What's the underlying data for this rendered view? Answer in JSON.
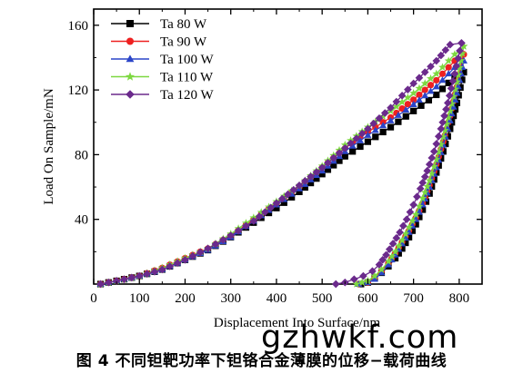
{
  "caption": "图 4   不同钽靶功率下钽铬合金薄膜的位移−载荷曲线",
  "watermark": "gzhwkf.com",
  "chart_data": {
    "type": "line",
    "xlabel": "Displacement Into Surface/nm",
    "ylabel": "Load On Sample/mN",
    "xlim": [
      0,
      850
    ],
    "ylim": [
      0,
      170
    ],
    "xticks": [
      0,
      100,
      200,
      300,
      400,
      500,
      600,
      700,
      800
    ],
    "yticks": [
      40,
      80,
      120,
      160
    ],
    "legend_position": "top-left",
    "series": [
      {
        "name": "Ta 80 W",
        "color": "#000000",
        "marker": "square",
        "loading": [
          [
            15,
            0
          ],
          [
            50,
            2
          ],
          [
            100,
            5
          ],
          [
            150,
            9
          ],
          [
            200,
            15
          ],
          [
            250,
            21
          ],
          [
            300,
            29
          ],
          [
            350,
            38
          ],
          [
            400,
            47
          ],
          [
            450,
            57
          ],
          [
            500,
            68
          ],
          [
            550,
            79
          ],
          [
            600,
            88
          ],
          [
            650,
            97
          ],
          [
            700,
            107
          ],
          [
            750,
            117
          ],
          [
            790,
            128
          ],
          [
            810,
            131
          ]
        ],
        "unloading": [
          [
            810,
            131
          ],
          [
            795,
            112
          ],
          [
            780,
            96
          ],
          [
            765,
            82
          ],
          [
            750,
            69
          ],
          [
            735,
            56
          ],
          [
            720,
            46
          ],
          [
            705,
            37
          ],
          [
            690,
            29
          ],
          [
            675,
            22
          ],
          [
            660,
            16
          ],
          [
            645,
            11
          ],
          [
            630,
            7
          ],
          [
            615,
            4
          ],
          [
            600,
            1
          ],
          [
            585,
            0
          ]
        ]
      },
      {
        "name": "Ta 90 W",
        "color": "#ee2020",
        "marker": "circle",
        "loading": [
          [
            15,
            0
          ],
          [
            50,
            2
          ],
          [
            100,
            5
          ],
          [
            150,
            10
          ],
          [
            200,
            16
          ],
          [
            250,
            22
          ],
          [
            300,
            30
          ],
          [
            350,
            40
          ],
          [
            400,
            50
          ],
          [
            450,
            60
          ],
          [
            500,
            72
          ],
          [
            550,
            84
          ],
          [
            600,
            94
          ],
          [
            650,
            103
          ],
          [
            700,
            114
          ],
          [
            750,
            126
          ],
          [
            790,
            138
          ],
          [
            810,
            142
          ]
        ],
        "unloading": [
          [
            810,
            142
          ],
          [
            795,
            122
          ],
          [
            780,
            104
          ],
          [
            765,
            88
          ],
          [
            750,
            74
          ],
          [
            735,
            61
          ],
          [
            720,
            50
          ],
          [
            705,
            41
          ],
          [
            690,
            33
          ],
          [
            675,
            26
          ],
          [
            660,
            19
          ],
          [
            645,
            13
          ],
          [
            630,
            8
          ],
          [
            615,
            4
          ],
          [
            600,
            1
          ],
          [
            580,
            0
          ]
        ]
      },
      {
        "name": "Ta 100 W",
        "color": "#2a45c8",
        "marker": "triangle",
        "loading": [
          [
            15,
            0
          ],
          [
            50,
            2
          ],
          [
            100,
            5
          ],
          [
            150,
            9
          ],
          [
            200,
            15
          ],
          [
            250,
            21
          ],
          [
            300,
            29
          ],
          [
            350,
            39
          ],
          [
            400,
            49
          ],
          [
            450,
            59
          ],
          [
            500,
            70
          ],
          [
            550,
            82
          ],
          [
            600,
            92
          ],
          [
            650,
            101
          ],
          [
            700,
            111
          ],
          [
            750,
            122
          ],
          [
            790,
            134
          ],
          [
            810,
            138
          ]
        ],
        "unloading": [
          [
            810,
            138
          ],
          [
            795,
            118
          ],
          [
            780,
            101
          ],
          [
            765,
            86
          ],
          [
            750,
            72
          ],
          [
            735,
            60
          ],
          [
            720,
            49
          ],
          [
            705,
            40
          ],
          [
            690,
            32
          ],
          [
            675,
            25
          ],
          [
            660,
            18
          ],
          [
            645,
            12
          ],
          [
            630,
            7
          ],
          [
            615,
            3
          ],
          [
            600,
            1
          ],
          [
            580,
            0
          ]
        ]
      },
      {
        "name": "Ta 110 W",
        "color": "#7dd840",
        "marker": "star",
        "loading": [
          [
            15,
            0
          ],
          [
            50,
            2
          ],
          [
            100,
            5
          ],
          [
            150,
            10
          ],
          [
            200,
            16
          ],
          [
            250,
            22
          ],
          [
            300,
            31
          ],
          [
            350,
            41
          ],
          [
            400,
            51
          ],
          [
            450,
            61
          ],
          [
            500,
            73
          ],
          [
            550,
            86
          ],
          [
            600,
            97
          ],
          [
            650,
            107
          ],
          [
            700,
            118
          ],
          [
            750,
            130
          ],
          [
            790,
            142
          ],
          [
            810,
            147
          ]
        ],
        "unloading": [
          [
            810,
            147
          ],
          [
            795,
            125
          ],
          [
            780,
            107
          ],
          [
            765,
            91
          ],
          [
            750,
            77
          ],
          [
            735,
            64
          ],
          [
            720,
            53
          ],
          [
            705,
            43
          ],
          [
            690,
            35
          ],
          [
            675,
            27
          ],
          [
            660,
            20
          ],
          [
            645,
            14
          ],
          [
            630,
            9
          ],
          [
            615,
            5
          ],
          [
            600,
            2
          ],
          [
            575,
            0
          ]
        ]
      },
      {
        "name": "Ta 120 W",
        "color": "#6b2a8c",
        "marker": "diamond",
        "loading": [
          [
            15,
            0
          ],
          [
            50,
            2
          ],
          [
            100,
            5
          ],
          [
            150,
            9
          ],
          [
            200,
            15
          ],
          [
            250,
            22
          ],
          [
            300,
            30
          ],
          [
            350,
            39
          ],
          [
            400,
            50
          ],
          [
            450,
            61
          ],
          [
            500,
            72
          ],
          [
            550,
            84
          ],
          [
            600,
            96
          ],
          [
            650,
            109
          ],
          [
            700,
            124
          ],
          [
            750,
            138
          ],
          [
            780,
            148
          ],
          [
            805,
            149
          ]
        ],
        "unloading": [
          [
            805,
            149
          ],
          [
            790,
            130
          ],
          [
            775,
            112
          ],
          [
            760,
            96
          ],
          [
            745,
            82
          ],
          [
            730,
            70
          ],
          [
            715,
            59
          ],
          [
            700,
            49
          ],
          [
            685,
            40
          ],
          [
            670,
            32
          ],
          [
            655,
            25
          ],
          [
            640,
            18
          ],
          [
            625,
            12
          ],
          [
            610,
            8
          ],
          [
            590,
            5
          ],
          [
            570,
            3
          ],
          [
            550,
            1
          ],
          [
            530,
            0
          ]
        ]
      }
    ]
  }
}
